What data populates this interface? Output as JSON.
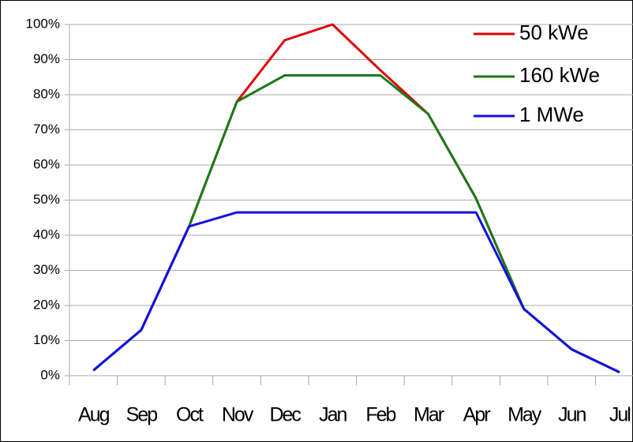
{
  "chart_data": {
    "type": "line",
    "categories": [
      "Aug",
      "Sep",
      "Oct",
      "Nov",
      "Dec",
      "Jan",
      "Feb",
      "Mar",
      "Apr",
      "May",
      "Jun",
      "Jul"
    ],
    "series": [
      {
        "name": "50 kWe",
        "color": "#e00000",
        "values": [
          1.5,
          13,
          42.5,
          78,
          95.5,
          100,
          87,
          74.5,
          50.5,
          19,
          7.5,
          1
        ]
      },
      {
        "name": "160 kWe",
        "color": "#1a7a1a",
        "values": [
          1.5,
          13,
          42.5,
          78,
          85.5,
          85.5,
          85.5,
          74.5,
          50.5,
          19,
          7.5,
          1
        ]
      },
      {
        "name": "1 MWe",
        "color": "#1010e0",
        "values": [
          1.5,
          13,
          42.5,
          46.5,
          46.5,
          46.5,
          46.5,
          46.5,
          46.5,
          19,
          7.5,
          1
        ]
      }
    ],
    "ylim": [
      0,
      100
    ],
    "yticks": [
      {
        "value": 0,
        "label": "0%"
      },
      {
        "value": 10,
        "label": "10%"
      },
      {
        "value": 20,
        "label": "20%"
      },
      {
        "value": 30,
        "label": "30%"
      },
      {
        "value": 40,
        "label": "40%"
      },
      {
        "value": 50,
        "label": "50%"
      },
      {
        "value": 60,
        "label": "60%"
      },
      {
        "value": 70,
        "label": "70%"
      },
      {
        "value": 80,
        "label": "80%"
      },
      {
        "value": 90,
        "label": "90%"
      },
      {
        "value": 100,
        "label": "100%"
      }
    ],
    "grid": true,
    "legend": "upper right"
  }
}
